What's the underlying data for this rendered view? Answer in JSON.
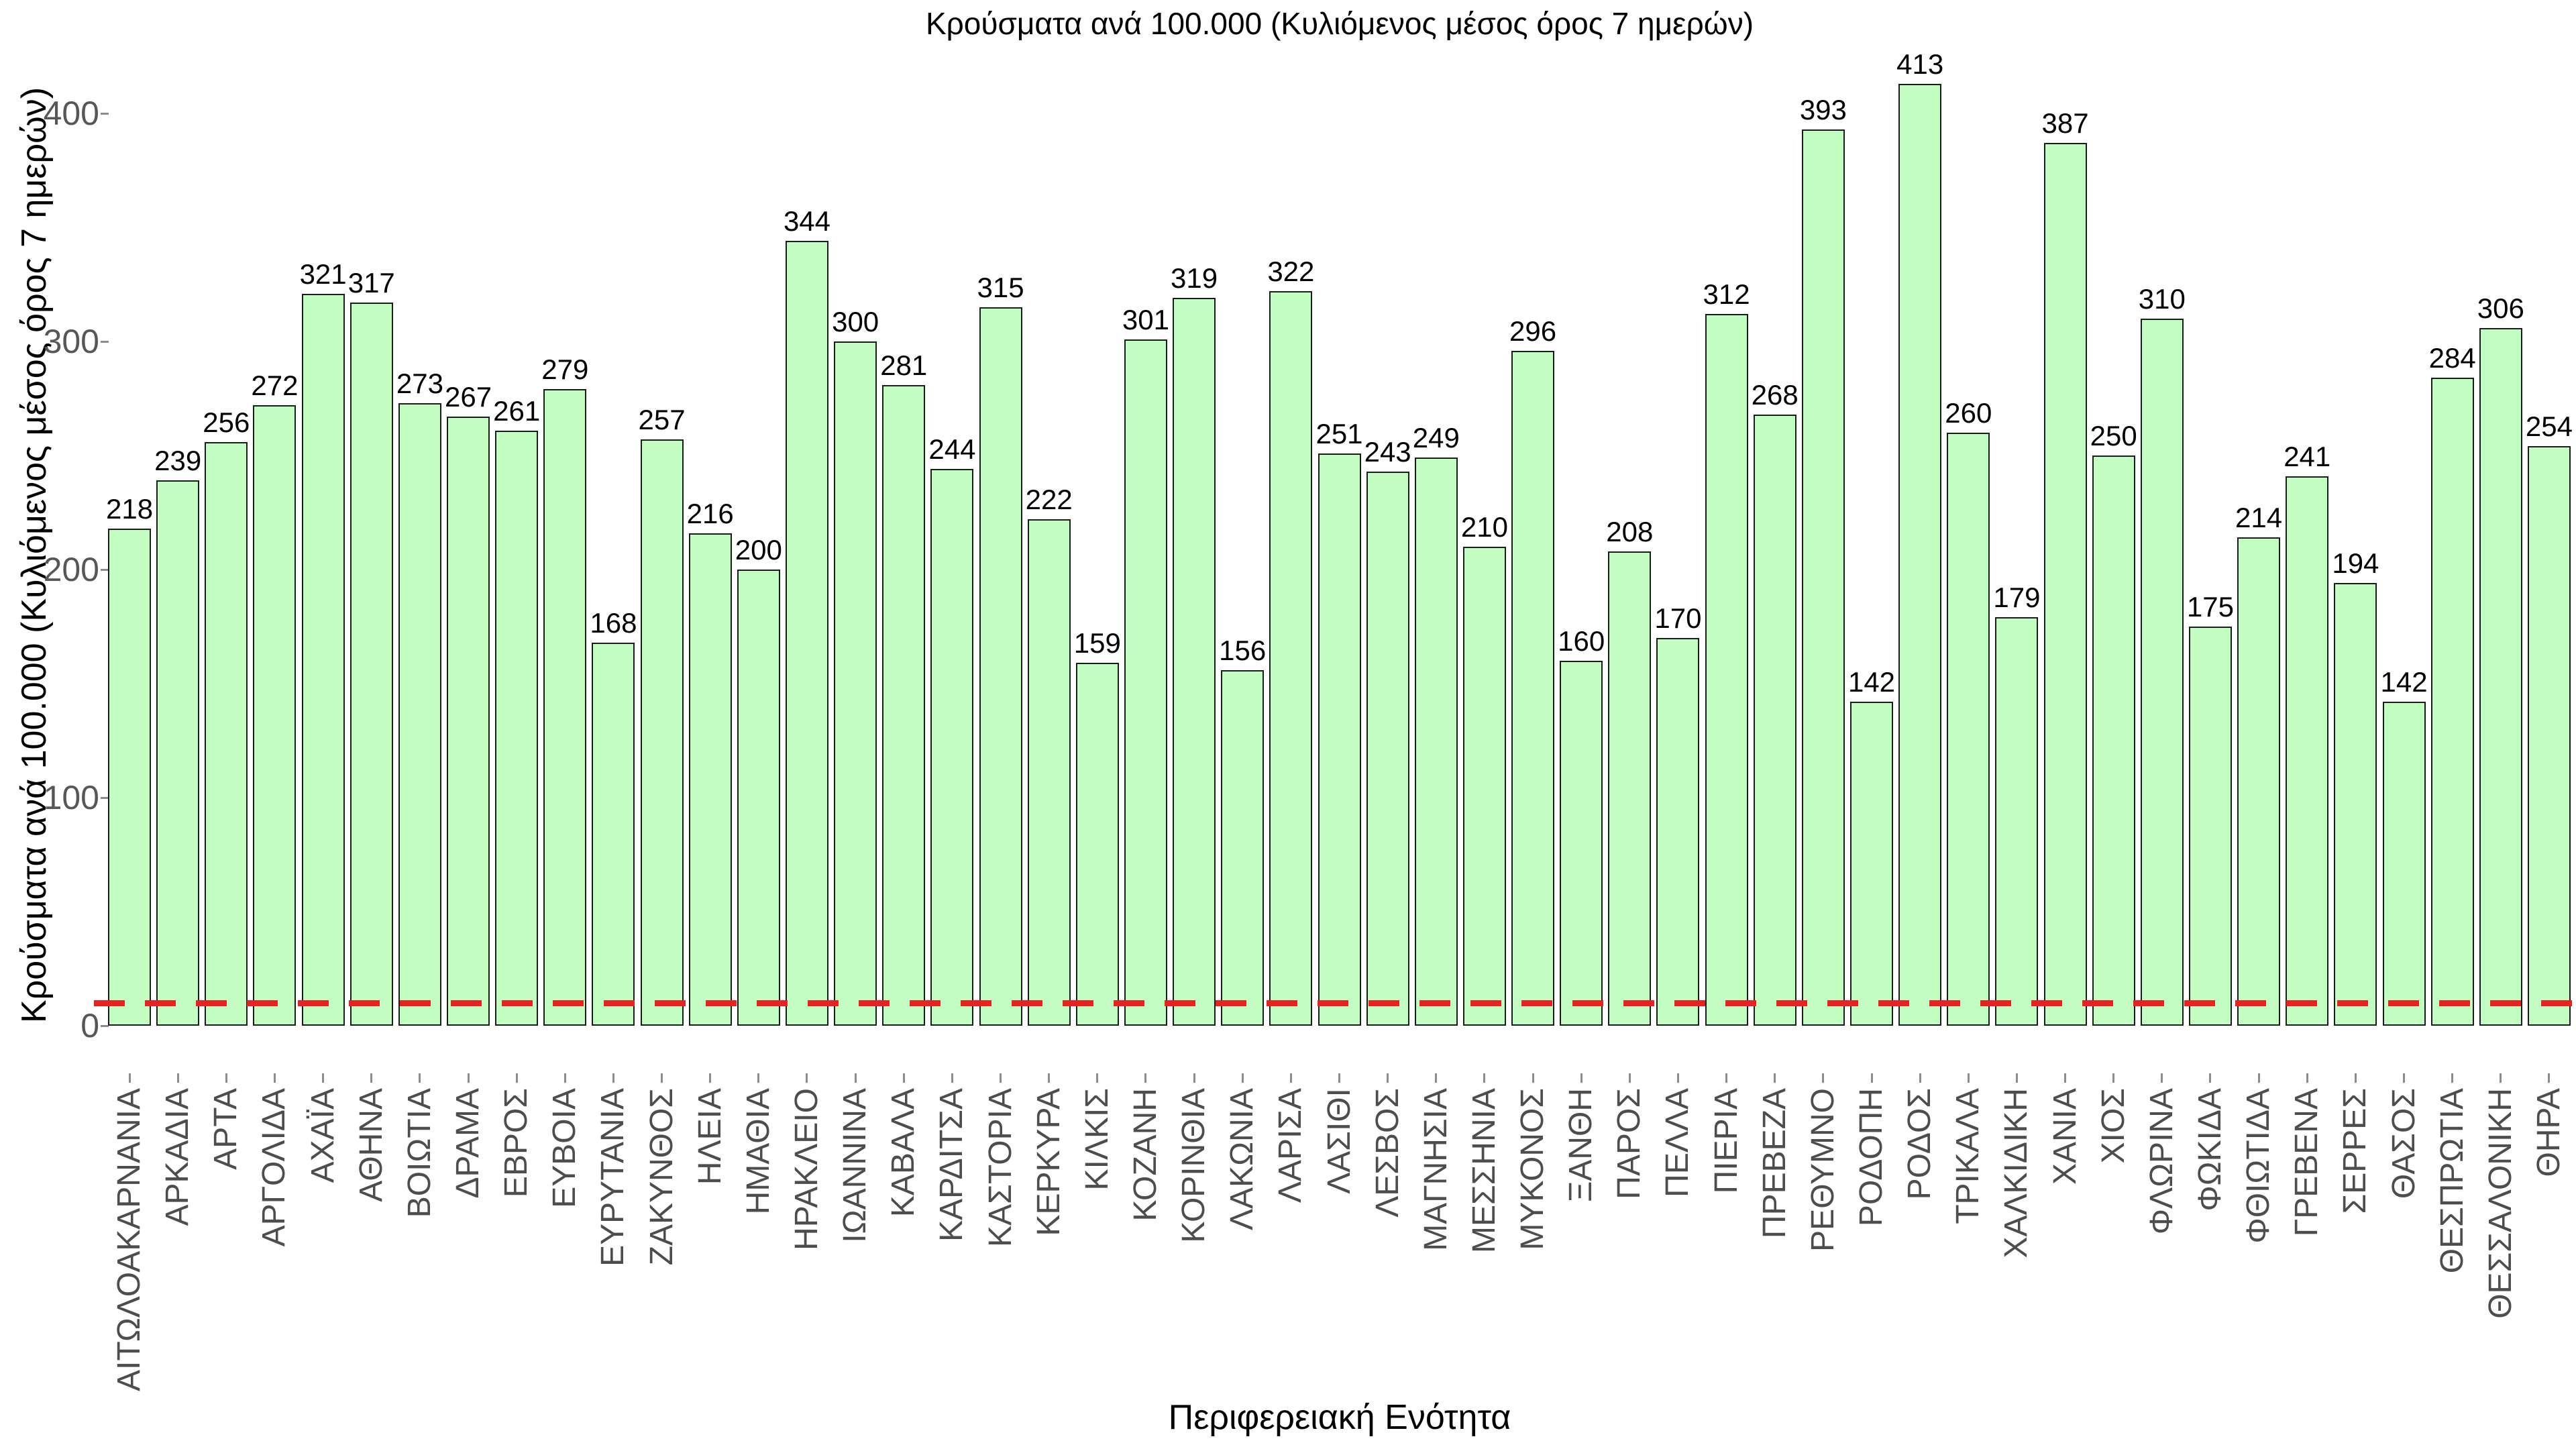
{
  "chart_data": {
    "type": "bar",
    "title": "Κρούσματα ανά 100.000 (Κυλιόμενος μέσος όρος 7 ημερών)",
    "xlabel": "Περιφερειακή Ενότητα",
    "ylabel": "Κρούσματα ανά 100.000 (Κυλιόμενος μέσος όρος 7 ημερών)",
    "categories": [
      "ΑΙΤΩΛΟΑΚΑΡΝΑΝΙΑ",
      "ΑΡΚΑΔΙΑ",
      "ΑΡΤΑ",
      "ΑΡΓΟΛΙΔΑ",
      "ΑΧΑΪΑ",
      "ΑΘΗΝΑ",
      "ΒΟΙΩΤΙΑ",
      "ΔΡΑΜΑ",
      "ΕΒΡΟΣ",
      "ΕΥΒΟΙΑ",
      "ΕΥΡΥΤΑΝΙΑ",
      "ΖΑΚΥΝΘΟΣ",
      "ΗΛΕΙΑ",
      "ΗΜΑΘΙΑ",
      "ΗΡΑΚΛΕΙΟ",
      "ΙΩΑΝΝΙΝΑ",
      "ΚΑΒΑΛΑ",
      "ΚΑΡΔΙΤΣΑ",
      "ΚΑΣΤΟΡΙΑ",
      "ΚΕΡΚΥΡΑ",
      "ΚΙΛΚΙΣ",
      "ΚΟΖΑΝΗ",
      "ΚΟΡΙΝΘΙΑ",
      "ΛΑΚΩΝΙΑ",
      "ΛΑΡΙΣΑ",
      "ΛΑΣΙΘΙ",
      "ΛΕΣΒΟΣ",
      "ΜΑΓΝΗΣΙΑ",
      "ΜΕΣΣΗΝΙΑ",
      "ΜΥΚΟΝΟΣ",
      "ΞΑΝΘΗ",
      "ΠΑΡΟΣ",
      "ΠΕΛΛΑ",
      "ΠΙΕΡΙΑ",
      "ΠΡΕΒΕΖΑ",
      "ΡΕΘΥΜΝΟ",
      "ΡΟΔΟΠΗ",
      "ΡΟΔΟΣ",
      "ΤΡΙΚΑΛΑ",
      "ΧΑΛΚΙΔΙΚΗ",
      "ΧΑΝΙΑ",
      "ΧΙΟΣ",
      "ΦΛΩΡΙΝΑ",
      "ΦΩΚΙΔΑ",
      "ΦΘΙΩΤΙΔΑ",
      "ΓΡΕΒΕΝΑ",
      "ΣΕΡΡΕΣ",
      "ΘΑΣΟΣ",
      "ΘΕΣΠΡΩΤΙΑ",
      "ΘΕΣΣΑΛΟΝΙΚΗ",
      "ΘΗΡΑ"
    ],
    "values": [
      218,
      239,
      256,
      272,
      321,
      317,
      273,
      267,
      261,
      279,
      168,
      257,
      216,
      200,
      344,
      300,
      281,
      244,
      315,
      222,
      159,
      301,
      319,
      156,
      322,
      251,
      243,
      249,
      210,
      296,
      160,
      208,
      170,
      312,
      268,
      393,
      142,
      413,
      260,
      179,
      387,
      250,
      310,
      175,
      214,
      241,
      194,
      142,
      284,
      306,
      254
    ],
    "ytick_values": [
      0,
      100,
      200,
      300,
      400
    ],
    "ytick_labels": [
      "0",
      "100",
      "200",
      "300",
      "400"
    ],
    "ylim": [
      0,
      420
    ],
    "grid": false,
    "legend": null,
    "reference_line": {
      "value": 10,
      "style": "dashed",
      "color": "#e62222"
    },
    "bar_fill_color": "#c2fdc2",
    "bar_border_color": "#1b1b1b",
    "tick_label_color": "#575757",
    "x_label_color": "#4d4d4d",
    "value_label_color": "#000000"
  }
}
